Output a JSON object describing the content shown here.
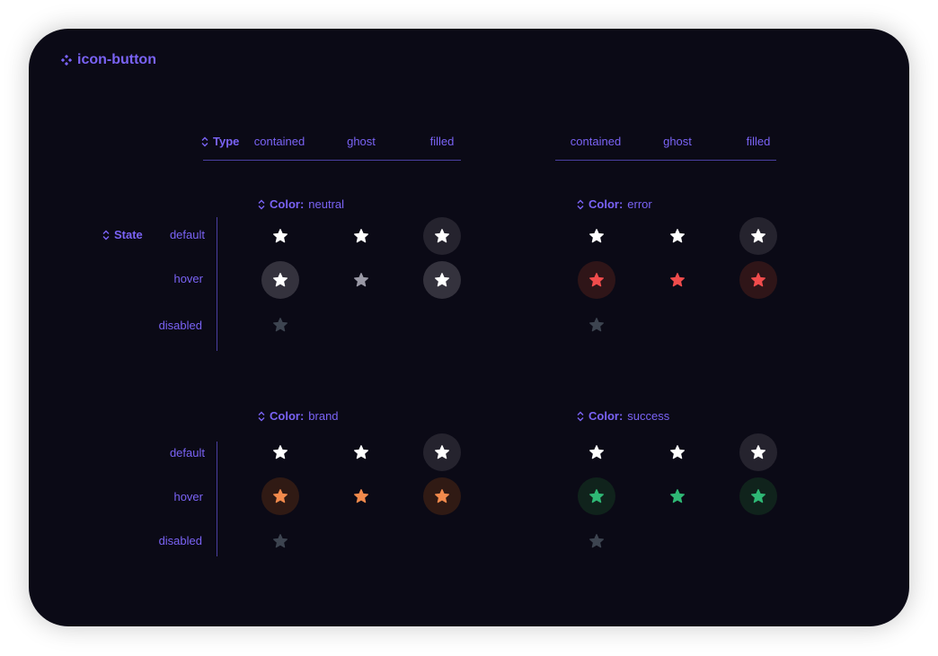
{
  "title": "icon-button",
  "type_prop": {
    "label": "Type"
  },
  "state_prop": {
    "label": "State"
  },
  "color_prefix": "Color:",
  "types": [
    "contained",
    "ghost",
    "filled"
  ],
  "states": [
    "default",
    "hover",
    "disabled"
  ],
  "colors": {
    "neutral": {
      "name": "neutral"
    },
    "error": {
      "name": "error"
    },
    "brand": {
      "name": "brand"
    },
    "success": {
      "name": "success"
    }
  },
  "palette": {
    "accent": "#7a63f5",
    "white": "#ffffff",
    "disabled": "#3d4450",
    "neutral_hover_icon": "#9a99a6",
    "error": "#f04c4c",
    "brand": "#f28a4c",
    "success": "#2fb875"
  },
  "icon": "star-icon"
}
